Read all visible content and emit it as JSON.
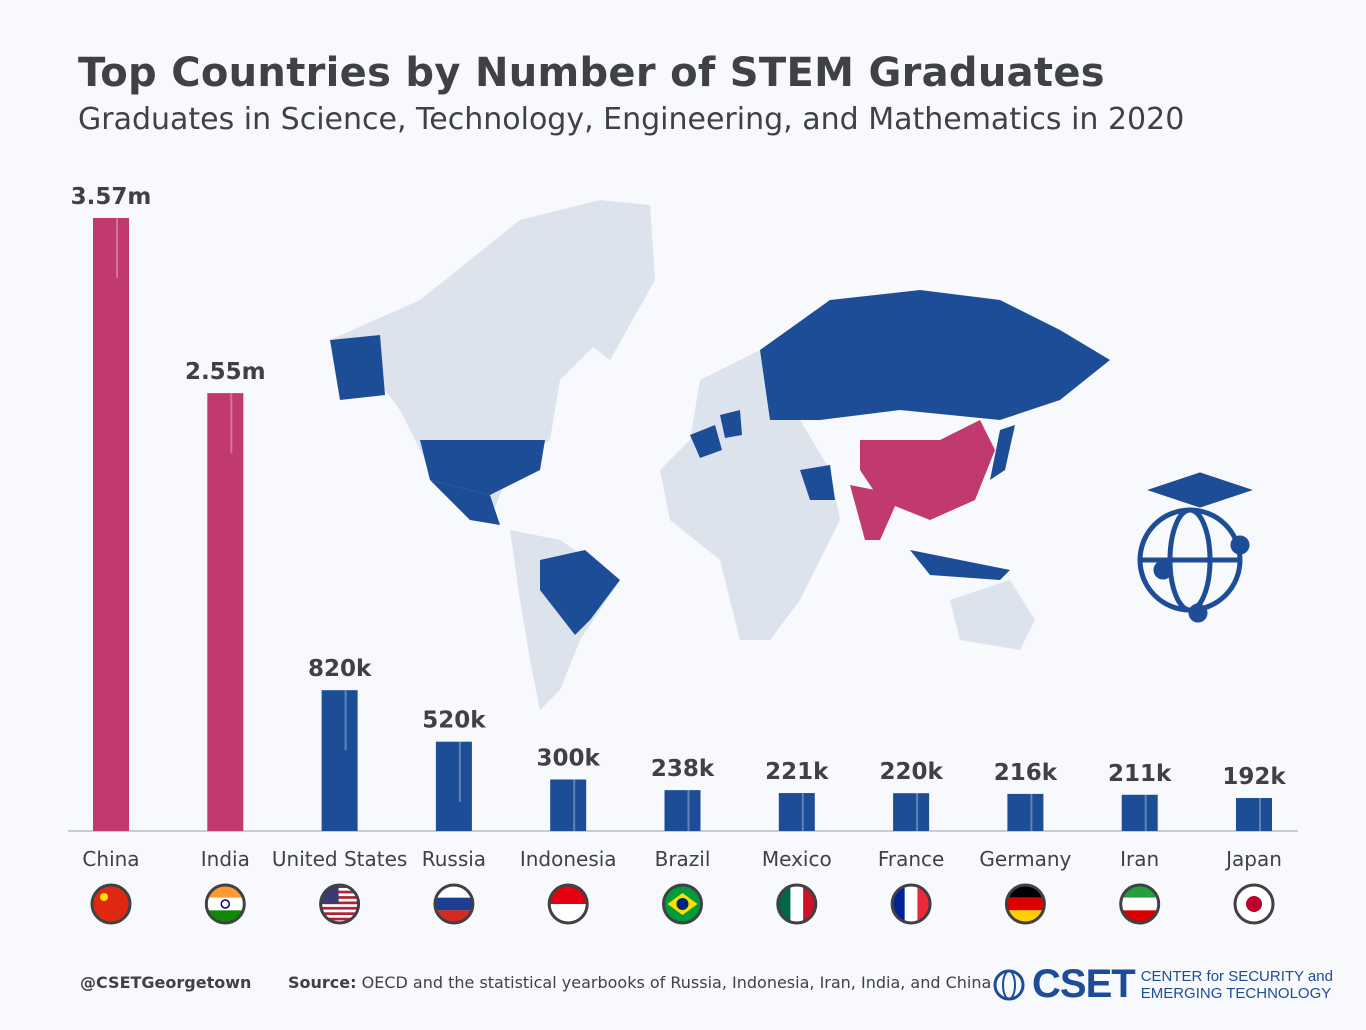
{
  "chart_data": {
    "type": "bar",
    "title": "Top Countries by Number of STEM Graduates",
    "subtitle": "Graduates in Science, Technology, Engineering, and Mathematics in 2020",
    "categories": [
      "China",
      "India",
      "United States",
      "Russia",
      "Indonesia",
      "Brazil",
      "Mexico",
      "France",
      "Germany",
      "Iran",
      "Japan"
    ],
    "values": [
      3570000,
      2550000,
      820000,
      520000,
      300000,
      238000,
      221000,
      220000,
      216000,
      211000,
      192000
    ],
    "data_labels": [
      "3.57m",
      "2.55m",
      "820k",
      "520k",
      "300k",
      "238k",
      "221k",
      "220k",
      "216k",
      "211k",
      "192k"
    ],
    "ylim": [
      0,
      3570000
    ],
    "grid": false,
    "colors": {
      "highlight": "#c0396f",
      "default": "#1e4d97",
      "text": "#3f4145",
      "map_land": "#dde3ec"
    },
    "highlighted": [
      "China",
      "India"
    ],
    "flags": [
      "china-flag",
      "india-flag",
      "usa-flag",
      "russia-flag",
      "indonesia-flag",
      "brazil-flag",
      "mexico-flag",
      "france-flag",
      "germany-flag",
      "iran-flag",
      "japan-flag"
    ]
  },
  "footer": {
    "handle": "@CSETGeorgetown",
    "source_label": "Source:",
    "source_text": "OECD and the statistical yearbooks of Russia, Indonesia, Iran, India, and China",
    "logo_text": "CSET",
    "logo_line1": "CENTER for SECURITY and",
    "logo_line2": "EMERGING TECHNOLOGY"
  }
}
